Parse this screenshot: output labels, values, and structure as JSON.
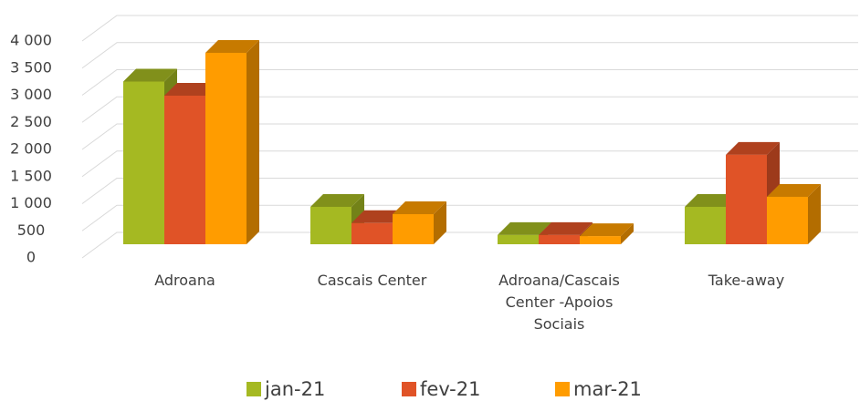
{
  "chart_data": {
    "type": "bar3d",
    "categories": [
      "Adroana",
      "Cascais Center",
      "Adroana/Cascais Center -Apoios Sociais",
      "Take-away"
    ],
    "series": [
      {
        "name": "jan-21",
        "color": "#a5b922",
        "values": [
          3000,
          690,
          170,
          690
        ]
      },
      {
        "name": "fev-21",
        "color": "#e05327",
        "values": [
          2740,
          390,
          170,
          1650
        ]
      },
      {
        "name": "mar-21",
        "color": "#ff9c00",
        "values": [
          3530,
          555,
          150,
          875
        ]
      }
    ],
    "ylim": [
      0,
      4000
    ],
    "yticks": [
      0,
      500,
      {
        "value": 1000,
        "label": "1 000"
      },
      {
        "value": 1500,
        "label": "1 500"
      },
      {
        "value": 2000,
        "label": "2 000"
      },
      {
        "value": 2500,
        "label": "2 500"
      },
      {
        "value": 3000,
        "label": "3 000"
      },
      {
        "value": 3500,
        "label": "3 500"
      },
      {
        "value": 4000,
        "label": "4 000"
      }
    ],
    "grid": true,
    "legend": "bottom"
  }
}
